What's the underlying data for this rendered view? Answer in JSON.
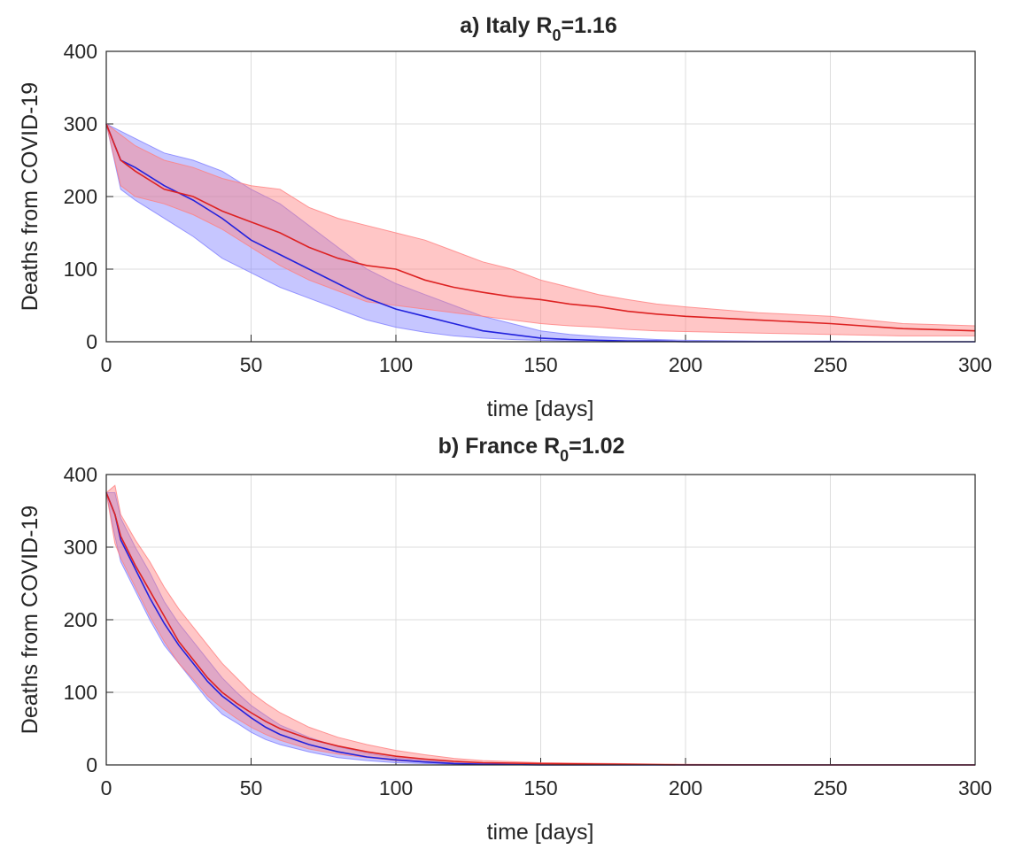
{
  "chart_data": [
    {
      "type": "area",
      "panel": "a",
      "title": "a) Italy R",
      "title_subscript": "0",
      "title_suffix": "=1.16",
      "xlabel": "time [days]",
      "ylabel": "Deaths from COVID-19",
      "xlim": [
        0,
        300
      ],
      "ylim": [
        0,
        400
      ],
      "xticks": [
        "0",
        "50",
        "100",
        "150",
        "200",
        "250",
        "300"
      ],
      "yticks": [
        "0",
        "100",
        "200",
        "300",
        "400"
      ],
      "grid": true,
      "x": [
        0,
        5,
        10,
        20,
        30,
        40,
        50,
        60,
        70,
        80,
        90,
        100,
        110,
        120,
        130,
        140,
        150,
        160,
        170,
        180,
        190,
        200,
        225,
        250,
        275,
        300
      ],
      "series": [
        {
          "color": "#2222dd",
          "band_color": "#8080ff",
          "mean": [
            300,
            250,
            240,
            215,
            195,
            170,
            140,
            120,
            100,
            80,
            60,
            45,
            35,
            25,
            15,
            10,
            5,
            3,
            2,
            1,
            1,
            0,
            0,
            0,
            0,
            0
          ],
          "upper": [
            300,
            290,
            280,
            260,
            250,
            235,
            210,
            190,
            160,
            130,
            100,
            80,
            65,
            50,
            35,
            25,
            15,
            10,
            7,
            5,
            3,
            2,
            1,
            1,
            0,
            0
          ],
          "lower": [
            300,
            210,
            195,
            170,
            145,
            115,
            95,
            75,
            60,
            45,
            30,
            20,
            13,
            8,
            5,
            3,
            2,
            1,
            0,
            0,
            0,
            0,
            0,
            0,
            0,
            0
          ]
        },
        {
          "color": "#dd2222",
          "band_color": "#ff8080",
          "mean": [
            300,
            250,
            235,
            210,
            200,
            180,
            165,
            150,
            130,
            115,
            105,
            100,
            85,
            75,
            68,
            62,
            58,
            52,
            48,
            42,
            38,
            35,
            30,
            25,
            18,
            15
          ],
          "upper": [
            300,
            285,
            270,
            250,
            240,
            225,
            215,
            210,
            185,
            170,
            160,
            150,
            140,
            125,
            110,
            100,
            85,
            75,
            65,
            58,
            52,
            48,
            40,
            35,
            25,
            22
          ],
          "lower": [
            300,
            215,
            200,
            190,
            175,
            155,
            130,
            105,
            85,
            70,
            55,
            50,
            45,
            40,
            35,
            30,
            25,
            22,
            20,
            17,
            15,
            14,
            12,
            10,
            8,
            8
          ]
        }
      ]
    },
    {
      "type": "area",
      "panel": "b",
      "title": "b) France R",
      "title_subscript": "0",
      "title_suffix": "=1.02",
      "xlabel": "time [days]",
      "ylabel": "Deaths from COVID-19",
      "xlim": [
        0,
        300
      ],
      "ylim": [
        0,
        400
      ],
      "xticks": [
        "0",
        "50",
        "100",
        "150",
        "200",
        "250",
        "300"
      ],
      "yticks": [
        "0",
        "100",
        "200",
        "300",
        "400"
      ],
      "grid": true,
      "x": [
        0,
        3,
        5,
        10,
        15,
        20,
        25,
        30,
        35,
        40,
        45,
        50,
        55,
        60,
        70,
        80,
        90,
        100,
        110,
        120,
        130,
        150,
        175,
        200,
        250,
        300
      ],
      "series": [
        {
          "color": "#2222dd",
          "band_color": "#8080ff",
          "mean": [
            375,
            345,
            310,
            270,
            230,
            195,
            165,
            140,
            115,
            95,
            80,
            65,
            52,
            42,
            28,
            18,
            11,
            7,
            4,
            2,
            1,
            0,
            0,
            0,
            0,
            0
          ],
          "upper": [
            375,
            375,
            340,
            300,
            265,
            225,
            195,
            170,
            145,
            120,
            100,
            82,
            68,
            55,
            38,
            25,
            16,
            10,
            6,
            3,
            2,
            1,
            0,
            0,
            0,
            0
          ],
          "lower": [
            375,
            315,
            280,
            240,
            200,
            165,
            140,
            115,
            90,
            70,
            58,
            45,
            35,
            28,
            18,
            10,
            6,
            3,
            2,
            1,
            0,
            0,
            0,
            0,
            0,
            0
          ]
        },
        {
          "color": "#dd2222",
          "band_color": "#ff8080",
          "mean": [
            375,
            345,
            315,
            275,
            240,
            205,
            170,
            145,
            120,
            100,
            85,
            72,
            60,
            50,
            36,
            26,
            18,
            12,
            8,
            5,
            3,
            2,
            1,
            0,
            0,
            0
          ],
          "upper": [
            375,
            385,
            345,
            310,
            280,
            245,
            215,
            190,
            165,
            140,
            120,
            100,
            85,
            72,
            52,
            38,
            28,
            20,
            14,
            9,
            6,
            3,
            2,
            1,
            0,
            0
          ],
          "lower": [
            375,
            305,
            285,
            245,
            205,
            170,
            140,
            118,
            95,
            78,
            64,
            52,
            42,
            34,
            22,
            15,
            10,
            6,
            4,
            2,
            1,
            0,
            0,
            0,
            0,
            0
          ]
        }
      ]
    }
  ]
}
